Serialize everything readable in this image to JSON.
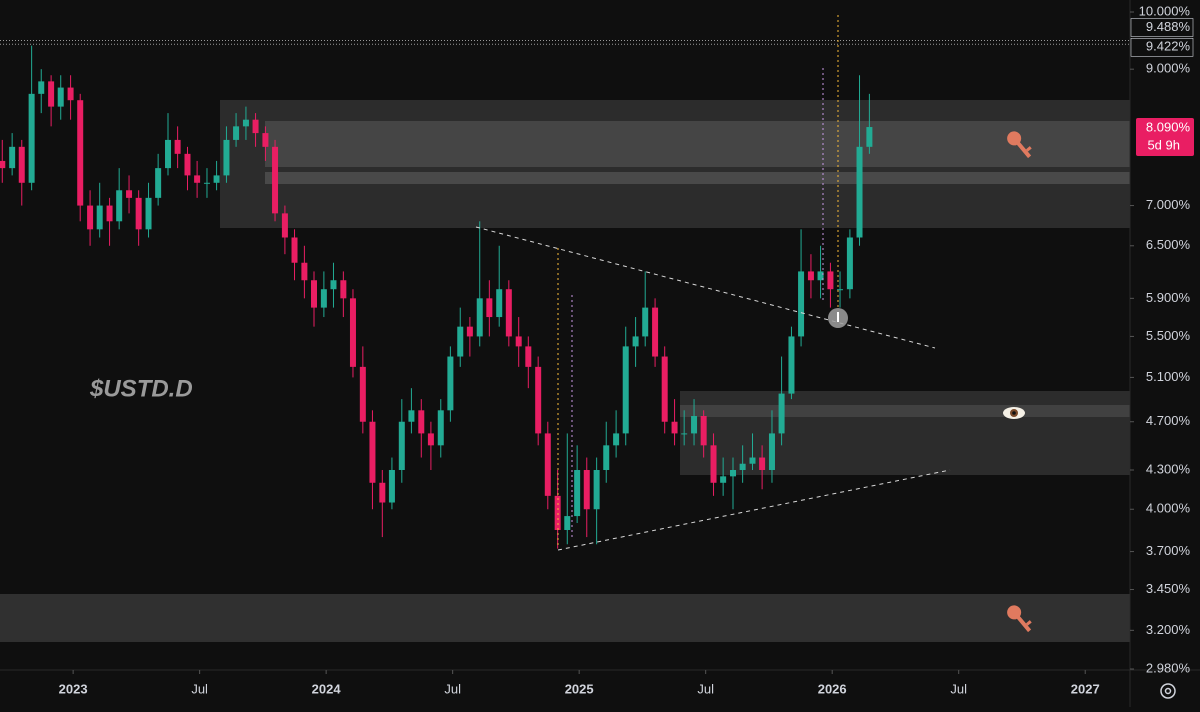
{
  "chart_data": {
    "type": "candlestick",
    "symbol": "$USTD.D",
    "x": [
      2022.72,
      2022.759,
      2022.797,
      2022.836,
      2022.874,
      2022.913,
      2022.951,
      2022.99,
      2023.028,
      2023.067,
      2023.105,
      2023.144,
      2023.182,
      2023.221,
      2023.259,
      2023.298,
      2023.336,
      2023.375,
      2023.413,
      2023.452,
      2023.49,
      2023.529,
      2023.567,
      2023.606,
      2023.644,
      2023.683,
      2023.721,
      2023.76,
      2023.798,
      2023.837,
      2023.875,
      2023.914,
      2023.952,
      2023.991,
      2024.029,
      2024.068,
      2024.106,
      2024.145,
      2024.183,
      2024.222,
      2024.26,
      2024.299,
      2024.337,
      2024.376,
      2024.414,
      2024.453,
      2024.491,
      2024.53,
      2024.568,
      2024.607,
      2024.645,
      2024.684,
      2024.722,
      2024.761,
      2024.799,
      2024.838,
      2024.876,
      2024.915,
      2024.953,
      2024.992,
      2025.03,
      2025.069,
      2025.107,
      2025.146,
      2025.184,
      2025.223,
      2025.261,
      2025.3,
      2025.338,
      2025.377,
      2025.415,
      2025.454,
      2025.492,
      2025.531,
      2025.569,
      2025.608,
      2025.646,
      2025.685,
      2025.723,
      2025.762,
      2025.8,
      2025.839,
      2025.877,
      2025.916,
      2025.954,
      2025.993,
      2026.031,
      2026.07,
      2026.108,
      2026.147
    ],
    "series": [
      {
        "up_color": "#22ab94",
        "down_color": "#e91e63",
        "values": [
          [
            7.6,
            7.9,
            7.3,
            7.5
          ],
          [
            7.5,
            8.0,
            7.4,
            7.8
          ],
          [
            7.8,
            7.9,
            7.0,
            7.3
          ],
          [
            7.3,
            9.4,
            7.2,
            8.6
          ],
          [
            8.6,
            9.0,
            8.3,
            8.8
          ],
          [
            8.8,
            8.9,
            8.1,
            8.4
          ],
          [
            8.4,
            8.9,
            8.2,
            8.7
          ],
          [
            8.7,
            8.9,
            8.2,
            8.5
          ],
          [
            8.5,
            8.6,
            6.8,
            7.0
          ],
          [
            7.0,
            7.2,
            6.5,
            6.7
          ],
          [
            6.7,
            7.3,
            6.6,
            7.0
          ],
          [
            7.0,
            7.1,
            6.5,
            6.8
          ],
          [
            6.8,
            7.5,
            6.7,
            7.2
          ],
          [
            7.2,
            7.4,
            6.9,
            7.1
          ],
          [
            7.1,
            7.2,
            6.5,
            6.7
          ],
          [
            6.7,
            7.3,
            6.6,
            7.1
          ],
          [
            7.1,
            7.7,
            7.0,
            7.5
          ],
          [
            7.5,
            8.3,
            7.4,
            7.9
          ],
          [
            7.9,
            8.1,
            7.5,
            7.7
          ],
          [
            7.7,
            7.8,
            7.2,
            7.4
          ],
          [
            7.4,
            7.6,
            7.1,
            7.3
          ],
          [
            7.3,
            7.5,
            7.1,
            7.3
          ],
          [
            7.3,
            7.6,
            7.2,
            7.4
          ],
          [
            7.4,
            8.1,
            7.3,
            7.9
          ],
          [
            7.9,
            8.3,
            7.8,
            8.1
          ],
          [
            8.1,
            8.4,
            7.9,
            8.2
          ],
          [
            8.2,
            8.3,
            7.8,
            8.0
          ],
          [
            8.0,
            8.1,
            7.6,
            7.8
          ],
          [
            7.8,
            7.9,
            6.8,
            6.9
          ],
          [
            6.9,
            7.0,
            6.4,
            6.6
          ],
          [
            6.6,
            6.7,
            6.1,
            6.3
          ],
          [
            6.3,
            6.5,
            5.9,
            6.1
          ],
          [
            6.1,
            6.2,
            5.6,
            5.8
          ],
          [
            5.8,
            6.2,
            5.7,
            6.0
          ],
          [
            6.0,
            6.3,
            5.8,
            6.1
          ],
          [
            6.1,
            6.2,
            5.7,
            5.9
          ],
          [
            5.9,
            6.0,
            5.1,
            5.2
          ],
          [
            5.2,
            5.4,
            4.6,
            4.7
          ],
          [
            4.7,
            4.8,
            4.0,
            4.2
          ],
          [
            4.2,
            4.3,
            3.8,
            4.05
          ],
          [
            4.05,
            4.4,
            4.0,
            4.3
          ],
          [
            4.3,
            4.9,
            4.2,
            4.7
          ],
          [
            4.7,
            5.0,
            4.6,
            4.8
          ],
          [
            4.8,
            4.9,
            4.4,
            4.6
          ],
          [
            4.6,
            4.7,
            4.3,
            4.5
          ],
          [
            4.5,
            4.9,
            4.4,
            4.8
          ],
          [
            4.8,
            5.4,
            4.7,
            5.3
          ],
          [
            5.3,
            5.8,
            5.2,
            5.6
          ],
          [
            5.6,
            5.7,
            5.3,
            5.5
          ],
          [
            5.5,
            6.8,
            5.4,
            5.9
          ],
          [
            5.9,
            6.1,
            5.5,
            5.7
          ],
          [
            5.7,
            6.5,
            5.6,
            6.0
          ],
          [
            6.0,
            6.1,
            5.4,
            5.5
          ],
          [
            5.5,
            5.7,
            5.2,
            5.4
          ],
          [
            5.4,
            5.5,
            5.0,
            5.2
          ],
          [
            5.2,
            5.3,
            4.5,
            4.6
          ],
          [
            4.6,
            4.7,
            4.0,
            4.1
          ],
          [
            4.1,
            4.3,
            3.72,
            3.85
          ],
          [
            3.85,
            4.6,
            3.75,
            3.95
          ],
          [
            3.95,
            4.5,
            3.9,
            4.3
          ],
          [
            4.3,
            4.4,
            3.8,
            4.0
          ],
          [
            4.0,
            4.4,
            3.75,
            4.3
          ],
          [
            4.3,
            4.7,
            4.2,
            4.5
          ],
          [
            4.5,
            4.8,
            4.4,
            4.6
          ],
          [
            4.6,
            5.6,
            4.5,
            5.4
          ],
          [
            5.4,
            5.7,
            5.2,
            5.5
          ],
          [
            5.5,
            6.2,
            5.4,
            5.8
          ],
          [
            5.8,
            5.9,
            5.2,
            5.3
          ],
          [
            5.3,
            5.4,
            4.6,
            4.7
          ],
          [
            4.7,
            4.9,
            4.5,
            4.6
          ],
          [
            4.6,
            4.8,
            4.5,
            4.6
          ],
          [
            4.6,
            4.9,
            4.5,
            4.75
          ],
          [
            4.75,
            4.8,
            4.4,
            4.5
          ],
          [
            4.5,
            4.6,
            4.1,
            4.2
          ],
          [
            4.2,
            4.4,
            4.1,
            4.25
          ],
          [
            4.25,
            4.4,
            4.0,
            4.3
          ],
          [
            4.3,
            4.5,
            4.2,
            4.35
          ],
          [
            4.35,
            4.6,
            4.3,
            4.4
          ],
          [
            4.4,
            4.5,
            4.15,
            4.3
          ],
          [
            4.3,
            4.8,
            4.2,
            4.6
          ],
          [
            4.6,
            5.3,
            4.5,
            4.95
          ],
          [
            4.95,
            5.6,
            4.9,
            5.5
          ],
          [
            5.5,
            6.7,
            5.4,
            6.2
          ],
          [
            6.2,
            6.4,
            5.9,
            6.1
          ],
          [
            6.1,
            6.5,
            5.9,
            6.2
          ],
          [
            6.2,
            6.3,
            5.8,
            6.0
          ],
          [
            6.0,
            6.2,
            5.8,
            6.0
          ],
          [
            6.0,
            6.7,
            5.9,
            6.6
          ],
          [
            6.6,
            8.9,
            6.5,
            7.8
          ],
          [
            7.8,
            8.6,
            7.7,
            8.09
          ]
        ]
      }
    ],
    "xlim": [
      2022.711,
      2027.177
    ],
    "xticks": [
      {
        "value": 2023,
        "label": "2023"
      },
      {
        "value": 2023.5,
        "label": "Jul"
      },
      {
        "value": 2024,
        "label": "2024"
      },
      {
        "value": 2024.5,
        "label": "Jul"
      },
      {
        "value": 2025,
        "label": "2025"
      },
      {
        "value": 2025.5,
        "label": "Jul"
      },
      {
        "value": 2026,
        "label": "2026"
      },
      {
        "value": 2026.5,
        "label": "Jul"
      },
      {
        "value": 2027,
        "label": "2027"
      }
    ],
    "ylim": [
      2.98,
      10
    ],
    "log_scale": true,
    "yticks": [
      {
        "value": 10,
        "label": "10.000%"
      },
      {
        "value": 9,
        "label": "9.000%"
      },
      {
        "value": 7,
        "label": "7.000%"
      },
      {
        "value": 6.5,
        "label": "6.500%"
      },
      {
        "value": 5.9,
        "label": "5.900%"
      },
      {
        "value": 5.5,
        "label": "5.500%"
      },
      {
        "value": 5.1,
        "label": "5.100%"
      },
      {
        "value": 4.7,
        "label": "4.700%"
      },
      {
        "value": 4.3,
        "label": "4.300%"
      },
      {
        "value": 4,
        "label": "4.000%"
      },
      {
        "value": 3.7,
        "label": "3.700%"
      },
      {
        "value": 3.45,
        "label": "3.450%"
      },
      {
        "value": 3.2,
        "label": "3.200%"
      },
      {
        "value": 2.98,
        "label": "2.980%"
      }
    ],
    "price_lines": [
      {
        "value": 9.488,
        "label": "9.488%"
      },
      {
        "value": 9.422,
        "label": "9.422%"
      }
    ],
    "last_price": {
      "value": 8.09,
      "label": "8.090%",
      "countdown": "5d 9h",
      "color": "#e91e63"
    }
  }
}
